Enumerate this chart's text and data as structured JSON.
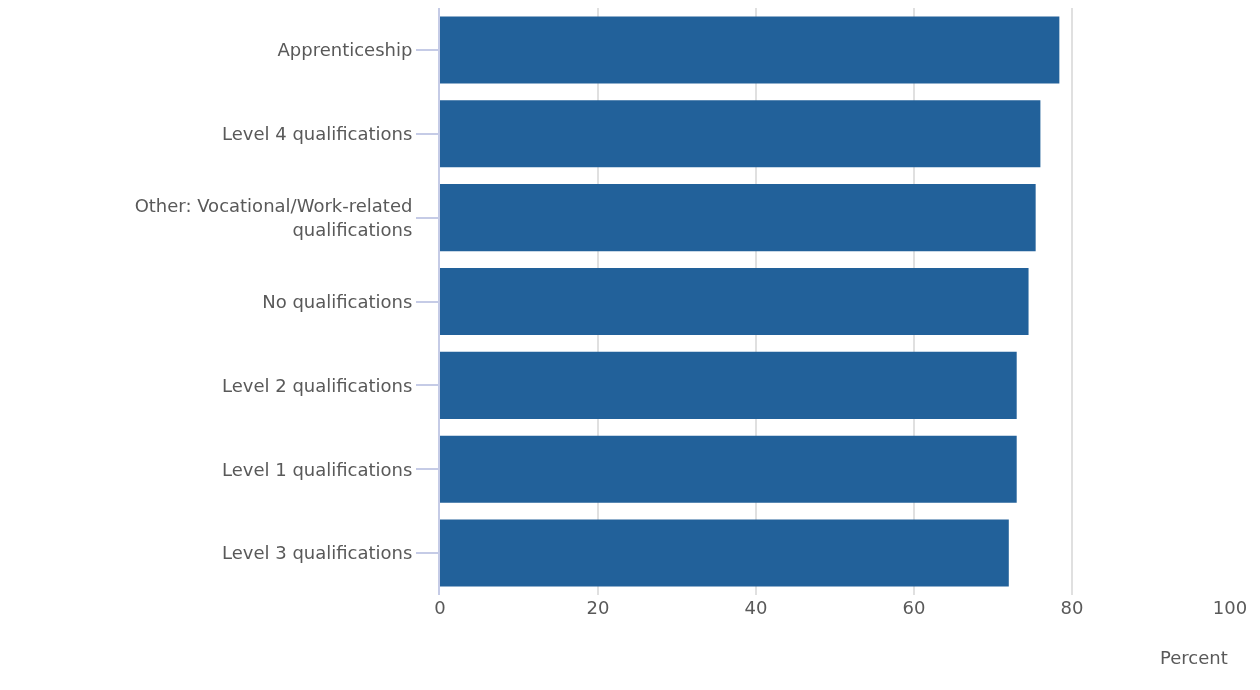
{
  "chart_data": {
    "type": "bar",
    "orientation": "horizontal",
    "xlabel": "Percent",
    "categories": [
      "Apprenticeship",
      "Level 4 qualifications",
      "Other: Vocational/Work-related qualifications",
      "No qualifications",
      "Level 2 qualifications",
      "Level 1 qualifications",
      "Level 3 qualifications"
    ],
    "values": [
      78.4,
      76.0,
      75.4,
      74.5,
      73.0,
      73.0,
      72.0
    ],
    "color": "#22619a",
    "xlim": [
      0,
      100
    ],
    "xticks": [
      0,
      20,
      40,
      60,
      80,
      100
    ],
    "grid": "x"
  }
}
